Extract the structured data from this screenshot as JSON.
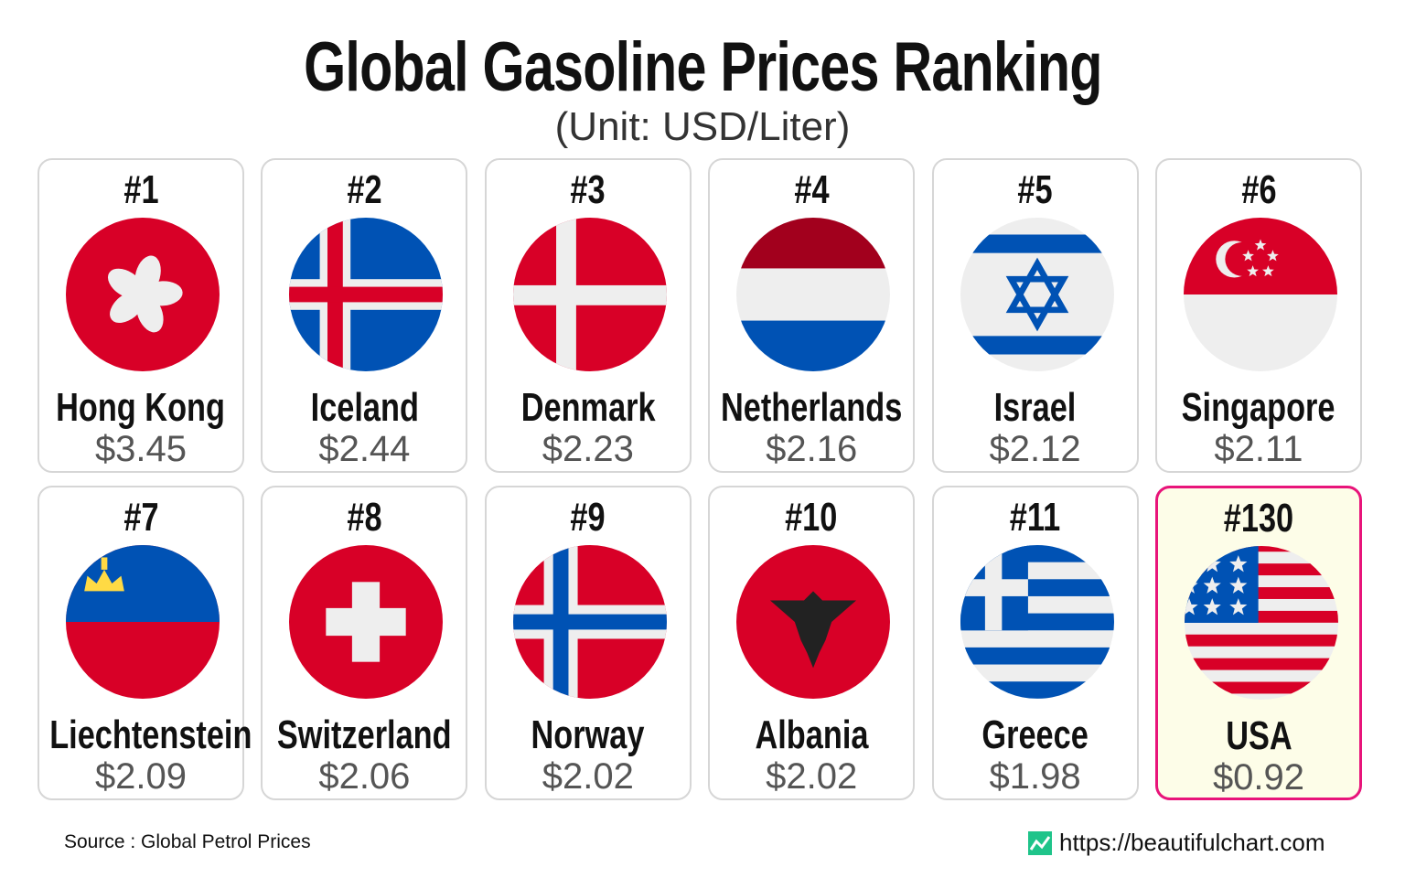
{
  "title": "Global Gasoline Prices Ranking",
  "subtitle": "(Unit: USD/Liter)",
  "source": "Source : Global Petrol Prices",
  "site": "https://beautifulchart.com",
  "colors": {
    "highlight_border": "#e8147a",
    "highlight_bg": "#fdfde8",
    "red": "#d80027",
    "blue": "#0052b4",
    "white": "#eeeeee"
  },
  "chart_data": {
    "type": "table",
    "title": "Global Gasoline Prices Ranking",
    "unit": "USD/Liter",
    "items": [
      {
        "rank": "#1",
        "country": "Hong Kong",
        "price": "$3.45",
        "value": 3.45,
        "flag": "hk"
      },
      {
        "rank": "#2",
        "country": "Iceland",
        "price": "$2.44",
        "value": 2.44,
        "flag": "is"
      },
      {
        "rank": "#3",
        "country": "Denmark",
        "price": "$2.23",
        "value": 2.23,
        "flag": "dk"
      },
      {
        "rank": "#4",
        "country": "Netherlands",
        "price": "$2.16",
        "value": 2.16,
        "flag": "nl"
      },
      {
        "rank": "#5",
        "country": "Israel",
        "price": "$2.12",
        "value": 2.12,
        "flag": "il"
      },
      {
        "rank": "#6",
        "country": "Singapore",
        "price": "$2.11",
        "value": 2.11,
        "flag": "sg"
      },
      {
        "rank": "#7",
        "country": "Liechtenstein",
        "price": "$2.09",
        "value": 2.09,
        "flag": "li"
      },
      {
        "rank": "#8",
        "country": "Switzerland",
        "price": "$2.06",
        "value": 2.06,
        "flag": "ch"
      },
      {
        "rank": "#9",
        "country": "Norway",
        "price": "$2.02",
        "value": 2.02,
        "flag": "no"
      },
      {
        "rank": "#10",
        "country": "Albania",
        "price": "$2.02",
        "value": 2.02,
        "flag": "al"
      },
      {
        "rank": "#11",
        "country": "Greece",
        "price": "$1.98",
        "value": 1.98,
        "flag": "gr"
      },
      {
        "rank": "#130",
        "country": "USA",
        "price": "$0.92",
        "value": 0.92,
        "flag": "us",
        "highlight": true
      }
    ]
  }
}
